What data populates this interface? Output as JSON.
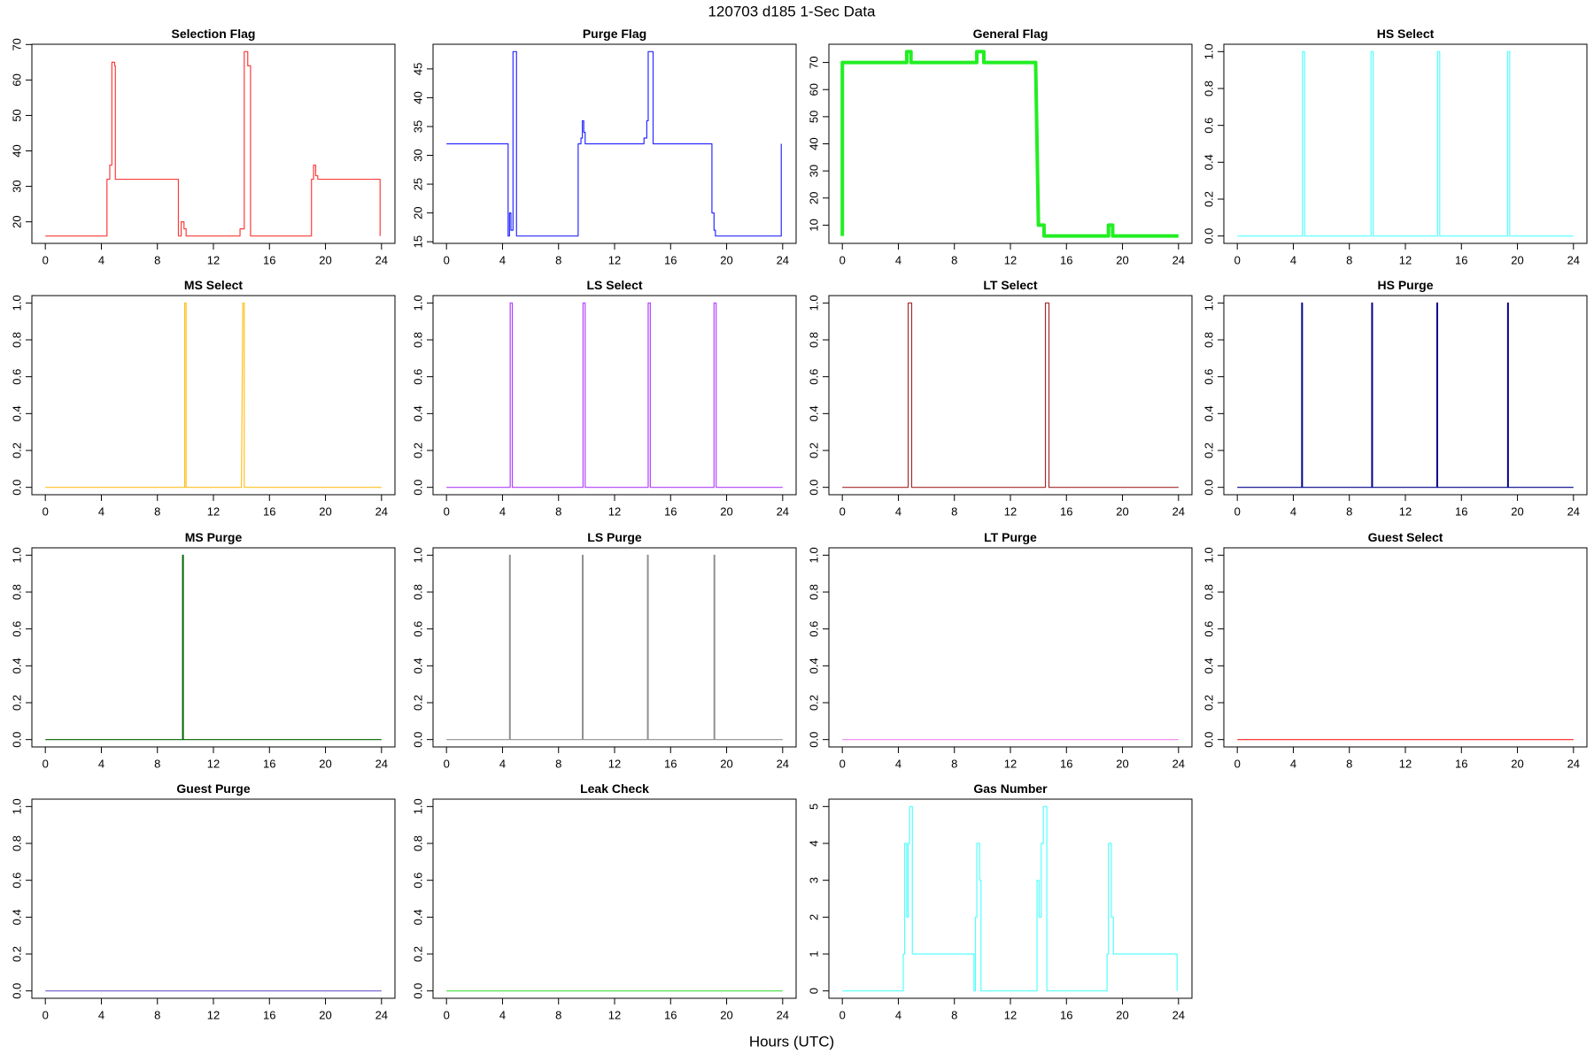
{
  "title": "120703   d185   1-Sec Data",
  "xlabel": "Hours (UTC)",
  "chart_data": [
    {
      "type": "line",
      "title": "Selection Flag",
      "color": "#ff3b3b",
      "x": [
        0,
        4.4,
        4.4,
        4.6,
        4.6,
        4.75,
        4.75,
        4.95,
        4.95,
        5.0,
        5.0,
        9.5,
        9.5,
        9.7,
        9.7,
        9.9,
        9.9,
        10.05,
        10.05,
        13.9,
        13.9,
        14.2,
        14.2,
        14.45,
        14.45,
        14.65,
        14.65,
        19.0,
        19.0,
        19.15,
        19.15,
        19.3,
        19.3,
        19.45,
        19.45,
        23.9,
        23.9
      ],
      "values": [
        16,
        16,
        32,
        32,
        36,
        36,
        65,
        65,
        64,
        64,
        32,
        32,
        16,
        16,
        20,
        20,
        18,
        18,
        16,
        16,
        18,
        18,
        68,
        68,
        64,
        64,
        16,
        16,
        32,
        32,
        36,
        36,
        33,
        33,
        32,
        32,
        16
      ],
      "xlim": [
        -0.96,
        24.96
      ],
      "xticks": [
        0,
        4,
        8,
        12,
        16,
        20,
        24
      ],
      "ylim": [
        13.92,
        70.08
      ],
      "yticks": [
        20,
        30,
        40,
        50,
        60,
        70
      ]
    },
    {
      "type": "line",
      "title": "Purge Flag",
      "color": "#2b2bff",
      "x": [
        0,
        4.4,
        4.4,
        4.5,
        4.5,
        4.6,
        4.6,
        4.75,
        4.75,
        5.0,
        5.0,
        9.4,
        9.4,
        9.6,
        9.6,
        9.7,
        9.7,
        9.8,
        9.8,
        9.9,
        9.9,
        14.1,
        14.1,
        14.3,
        14.3,
        14.4,
        14.4,
        14.75,
        14.75,
        18.95,
        18.95,
        19.1,
        19.1,
        19.2,
        19.2,
        23.9,
        23.9
      ],
      "values": [
        32,
        32,
        16,
        16,
        20,
        20,
        17,
        17,
        48,
        48,
        16,
        16,
        32,
        32,
        33,
        33,
        36,
        36,
        34,
        34,
        32,
        32,
        33,
        33,
        36,
        36,
        48,
        48,
        32,
        32,
        20,
        20,
        17,
        17,
        16,
        16,
        32
      ],
      "xlim": [
        -0.96,
        24.96
      ],
      "xticks": [
        0,
        4,
        8,
        12,
        16,
        20,
        24
      ],
      "ylim": [
        14.72,
        49.28
      ],
      "yticks": [
        15,
        20,
        25,
        30,
        35,
        40,
        45
      ]
    },
    {
      "type": "line",
      "title": "General Flag",
      "color": "#22ee22",
      "linewidth": 4,
      "x": [
        0,
        0,
        4.6,
        4.6,
        4.9,
        4.9,
        9.6,
        9.6,
        10.1,
        10.1,
        13.8,
        14.0,
        14.4,
        14.4,
        19.0,
        19.0,
        19.3,
        19.3,
        24
      ],
      "values": [
        6,
        70,
        70,
        74,
        74,
        70,
        70,
        74,
        74,
        70,
        70,
        10,
        10,
        6,
        6,
        10,
        10,
        6,
        6
      ],
      "xlim": [
        -0.96,
        24.96
      ],
      "xticks": [
        0,
        4,
        8,
        12,
        16,
        20,
        24
      ],
      "ylim": [
        3.28,
        76.72
      ],
      "yticks": [
        10,
        20,
        30,
        40,
        50,
        60,
        70
      ]
    },
    {
      "type": "line",
      "title": "HS Select",
      "color": "#55ffff",
      "x": [
        0,
        4.65,
        4.65,
        4.8,
        4.8,
        9.55,
        9.55,
        9.7,
        9.7,
        14.3,
        14.3,
        14.45,
        14.45,
        19.3,
        19.3,
        19.45,
        19.45,
        24
      ],
      "values": [
        0,
        0,
        1,
        1,
        0,
        0,
        1,
        1,
        0,
        0,
        1,
        1,
        0,
        0,
        1,
        1,
        0,
        0
      ],
      "xlim": [
        -0.96,
        24.96
      ],
      "xticks": [
        0,
        4,
        8,
        12,
        16,
        20,
        24
      ],
      "ylim": [
        -0.04,
        1.04
      ],
      "yticks": [
        {
          "value": 0,
          "label": "0.0"
        },
        0.2,
        0.4,
        0.6,
        0.8,
        {
          "value": 1,
          "label": "1.0"
        }
      ]
    },
    {
      "type": "line",
      "title": "MS Select",
      "color": "#ffc020",
      "x": [
        0,
        9.95,
        9.95,
        10.05,
        10.05,
        14.0,
        14.1,
        14.2,
        14.2,
        24
      ],
      "values": [
        0,
        0,
        1,
        1,
        0,
        0,
        1,
        1,
        0,
        0
      ],
      "xlim": [
        -0.96,
        24.96
      ],
      "xticks": [
        0,
        4,
        8,
        12,
        16,
        20,
        24
      ],
      "ylim": [
        -0.04,
        1.04
      ],
      "yticks": [
        {
          "value": 0,
          "label": "0.0"
        },
        0.2,
        0.4,
        0.6,
        0.8,
        {
          "value": 1,
          "label": "1.0"
        }
      ]
    },
    {
      "type": "line",
      "title": "LS Select",
      "color": "#b040ff",
      "x": [
        0,
        4.55,
        4.55,
        4.7,
        4.7,
        9.75,
        9.75,
        9.9,
        9.9,
        14.4,
        14.4,
        14.55,
        14.55,
        19.1,
        19.1,
        19.25,
        19.25,
        24
      ],
      "values": [
        0,
        0,
        1,
        1,
        0,
        0,
        1,
        1,
        0,
        0,
        1,
        1,
        0,
        0,
        1,
        1,
        0,
        0
      ],
      "xlim": [
        -0.96,
        24.96
      ],
      "xticks": [
        0,
        4,
        8,
        12,
        16,
        20,
        24
      ],
      "ylim": [
        -0.04,
        1.04
      ],
      "yticks": [
        {
          "value": 0,
          "label": "0.0"
        },
        0.2,
        0.4,
        0.6,
        0.8,
        {
          "value": 1,
          "label": "1.0"
        }
      ]
    },
    {
      "type": "line",
      "title": "LT Select",
      "color": "#a52a2a",
      "x": [
        0,
        4.7,
        4.7,
        4.95,
        4.95,
        14.5,
        14.5,
        14.75,
        14.75,
        24
      ],
      "values": [
        0,
        0,
        1,
        1,
        0,
        0,
        1,
        1,
        0,
        0
      ],
      "xlim": [
        -0.96,
        24.96
      ],
      "xticks": [
        0,
        4,
        8,
        12,
        16,
        20,
        24
      ],
      "ylim": [
        -0.04,
        1.04
      ],
      "yticks": [
        {
          "value": 0,
          "label": "0.0"
        },
        0.2,
        0.4,
        0.6,
        0.8,
        {
          "value": 1,
          "label": "1.0"
        }
      ]
    },
    {
      "type": "line",
      "title": "HS Purge",
      "color": "#00008b",
      "x": [
        0,
        4.6,
        4.6,
        4.65,
        4.65,
        9.6,
        9.6,
        9.65,
        9.65,
        14.25,
        14.25,
        14.3,
        14.3,
        19.3,
        19.3,
        19.35,
        19.35,
        24
      ],
      "values": [
        0,
        0,
        1,
        1,
        0,
        0,
        1,
        1,
        0,
        0,
        1,
        1,
        0,
        0,
        1,
        1,
        0,
        0
      ],
      "xlim": [
        -0.96,
        24.96
      ],
      "xticks": [
        0,
        4,
        8,
        12,
        16,
        20,
        24
      ],
      "ylim": [
        -0.04,
        1.04
      ],
      "yticks": [
        {
          "value": 0,
          "label": "0.0"
        },
        0.2,
        0.4,
        0.6,
        0.8,
        {
          "value": 1,
          "label": "1.0"
        }
      ]
    },
    {
      "type": "line",
      "title": "MS Purge",
      "color": "#006400",
      "x": [
        0,
        9.8,
        9.8,
        9.85,
        9.85,
        24
      ],
      "values": [
        0,
        0,
        1,
        1,
        0,
        0
      ],
      "xlim": [
        -0.96,
        24.96
      ],
      "xticks": [
        0,
        4,
        8,
        12,
        16,
        20,
        24
      ],
      "ylim": [
        -0.04,
        1.04
      ],
      "yticks": [
        {
          "value": 0,
          "label": "0.0"
        },
        0.2,
        0.4,
        0.6,
        0.8,
        {
          "value": 1,
          "label": "1.0"
        }
      ]
    },
    {
      "type": "line",
      "title": "LS Purge",
      "color": "#909090",
      "x": [
        0,
        4.5,
        4.5,
        4.55,
        4.55,
        9.7,
        9.7,
        9.75,
        9.75,
        14.35,
        14.35,
        14.4,
        14.4,
        19.1,
        19.1,
        19.15,
        19.15,
        24
      ],
      "values": [
        0,
        0,
        1,
        1,
        0,
        0,
        1,
        1,
        0,
        0,
        1,
        1,
        0,
        0,
        1,
        1,
        0,
        0
      ],
      "xlim": [
        -0.96,
        24.96
      ],
      "xticks": [
        0,
        4,
        8,
        12,
        16,
        20,
        24
      ],
      "ylim": [
        -0.04,
        1.04
      ],
      "yticks": [
        {
          "value": 0,
          "label": "0.0"
        },
        0.2,
        0.4,
        0.6,
        0.8,
        {
          "value": 1,
          "label": "1.0"
        }
      ]
    },
    {
      "type": "line",
      "title": "LT Purge",
      "color": "#ee82ee",
      "x": [
        0,
        24
      ],
      "values": [
        0,
        0
      ],
      "xlim": [
        -0.96,
        24.96
      ],
      "xticks": [
        0,
        4,
        8,
        12,
        16,
        20,
        24
      ],
      "ylim": [
        -0.04,
        1.04
      ],
      "yticks": [
        {
          "value": 0,
          "label": "0.0"
        },
        0.2,
        0.4,
        0.6,
        0.8,
        {
          "value": 1,
          "label": "1.0"
        }
      ]
    },
    {
      "type": "line",
      "title": "Guest Select",
      "color": "#ff2020",
      "x": [
        0,
        24
      ],
      "values": [
        0,
        0
      ],
      "xlim": [
        -0.96,
        24.96
      ],
      "xticks": [
        0,
        4,
        8,
        12,
        16,
        20,
        24
      ],
      "ylim": [
        -0.04,
        1.04
      ],
      "yticks": [
        {
          "value": 0,
          "label": "0.0"
        },
        0.2,
        0.4,
        0.6,
        0.8,
        {
          "value": 1,
          "label": "1.0"
        }
      ]
    },
    {
      "type": "line",
      "title": "Guest Purge",
      "color": "#6a5acd",
      "x": [
        0,
        24
      ],
      "values": [
        0,
        0
      ],
      "xlim": [
        -0.96,
        24.96
      ],
      "xticks": [
        0,
        4,
        8,
        12,
        16,
        20,
        24
      ],
      "ylim": [
        -0.04,
        1.04
      ],
      "yticks": [
        {
          "value": 0,
          "label": "0.0"
        },
        0.2,
        0.4,
        0.6,
        0.8,
        {
          "value": 1,
          "label": "1.0"
        }
      ]
    },
    {
      "type": "line",
      "title": "Leak Check",
      "color": "#44dd44",
      "x": [
        0,
        24
      ],
      "values": [
        0,
        0
      ],
      "xlim": [
        -0.96,
        24.96
      ],
      "xticks": [
        0,
        4,
        8,
        12,
        16,
        20,
        24
      ],
      "ylim": [
        -0.04,
        1.04
      ],
      "yticks": [
        {
          "value": 0,
          "label": "0.0"
        },
        0.2,
        0.4,
        0.6,
        0.8,
        {
          "value": 1,
          "label": "1.0"
        }
      ]
    },
    {
      "type": "line",
      "title": "Gas Number",
      "color": "#55ffff",
      "x": [
        0,
        4.35,
        4.35,
        4.45,
        4.45,
        4.6,
        4.6,
        4.7,
        4.7,
        4.8,
        4.8,
        5.0,
        5.0,
        9.4,
        9.4,
        9.5,
        9.5,
        9.6,
        9.6,
        9.8,
        9.8,
        9.9,
        9.9,
        13.9,
        13.9,
        14.05,
        14.05,
        14.2,
        14.2,
        14.35,
        14.35,
        14.6,
        14.6,
        18.9,
        18.9,
        19.0,
        19.0,
        19.2,
        19.2,
        19.35,
        19.35,
        23.9,
        23.9
      ],
      "values": [
        0,
        0,
        1,
        1,
        4,
        4,
        2,
        2,
        4,
        4,
        5,
        5,
        1,
        1,
        0,
        0,
        2,
        2,
        4,
        4,
        3,
        3,
        0,
        0,
        3,
        3,
        2,
        2,
        4,
        4,
        5,
        5,
        0,
        0,
        1,
        1,
        4,
        4,
        2,
        2,
        1,
        1,
        0
      ],
      "xlim": [
        -0.96,
        24.96
      ],
      "xticks": [
        0,
        4,
        8,
        12,
        16,
        20,
        24
      ],
      "ylim": [
        -0.2,
        5.2
      ],
      "yticks": [
        0,
        1,
        2,
        3,
        4,
        5
      ]
    }
  ]
}
